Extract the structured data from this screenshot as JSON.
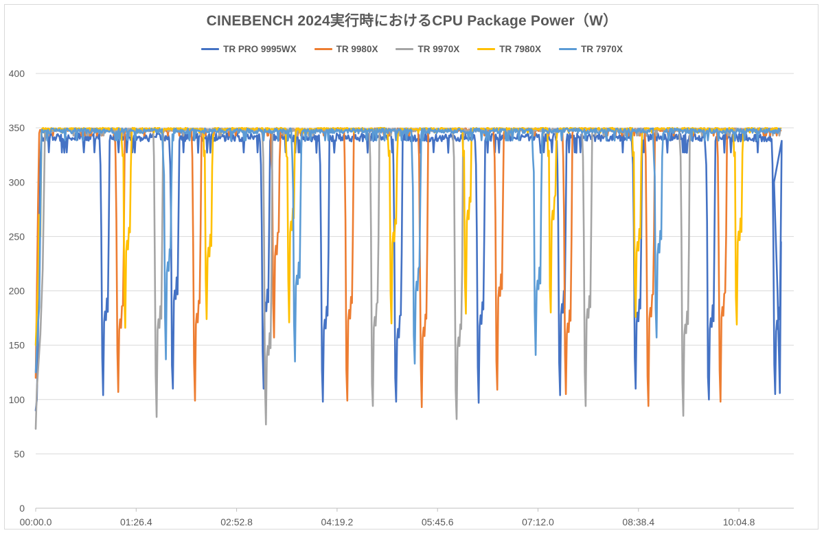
{
  "chart_data": {
    "type": "line",
    "title": "CINEBENCH 2024実行時におけるCPU Package Power（W）",
    "xlabel": "",
    "ylabel": "",
    "ylim": [
      0,
      400
    ],
    "y_ticks": [
      0,
      50,
      100,
      150,
      200,
      250,
      300,
      350,
      400
    ],
    "x_range_seconds": [
      0,
      652
    ],
    "x_ticks": [
      {
        "seconds": 0,
        "label": "00:00.0"
      },
      {
        "seconds": 86.4,
        "label": "01:26.4"
      },
      {
        "seconds": 172.8,
        "label": "02:52.8"
      },
      {
        "seconds": 259.2,
        "label": "04:19.2"
      },
      {
        "seconds": 345.6,
        "label": "05:45.6"
      },
      {
        "seconds": 432.0,
        "label": "07:12.0"
      },
      {
        "seconds": 518.4,
        "label": "08:38.4"
      },
      {
        "seconds": 604.8,
        "label": "10:04.8"
      }
    ],
    "grid": true,
    "legend_position": "top",
    "series": [
      {
        "name": "TR PRO 9995WX",
        "color": "#4472C4",
        "base": 341,
        "noise": 4,
        "end": 641,
        "start": [
          [
            0,
            90
          ],
          [
            1,
            100
          ],
          [
            2,
            160
          ],
          [
            3,
            240
          ],
          [
            4,
            320
          ],
          [
            5,
            343
          ]
        ],
        "dips": [
          [
            58,
            104
          ],
          [
            118,
            110
          ],
          [
            196,
            110
          ],
          [
            247,
            98
          ],
          [
            310,
            98
          ],
          [
            381,
            97
          ],
          [
            451,
            104
          ],
          [
            516,
            110
          ],
          [
            579,
            100
          ],
          [
            636,
            105
          ]
        ],
        "tail": [
          [
            635,
            300
          ],
          [
            638,
            200
          ],
          [
            640,
            106
          ],
          [
            641,
            245
          ]
        ]
      },
      {
        "name": "TR 9980X",
        "color": "#ED7D31",
        "base": 348,
        "noise": 1.5,
        "end": 641,
        "start": [
          [
            0,
            120
          ],
          [
            1,
            200
          ],
          [
            2,
            280
          ],
          [
            3,
            345
          ]
        ],
        "dips": [
          [
            71,
            107
          ],
          [
            137,
            99
          ],
          [
            205,
            157
          ],
          [
            268,
            99
          ],
          [
            332,
            93
          ],
          [
            397,
            109
          ],
          [
            456,
            105
          ],
          [
            527,
            94
          ],
          [
            589,
            98
          ]
        ]
      },
      {
        "name": "TR 9970X",
        "color": "#A5A5A5",
        "base": 348,
        "noise": 1.5,
        "end": 641,
        "start": [
          [
            0,
            73
          ],
          [
            1,
            110
          ],
          [
            4,
            160
          ],
          [
            6,
            220
          ],
          [
            8,
            348
          ]
        ],
        "dips": [
          [
            104,
            84
          ],
          [
            198,
            77
          ],
          [
            290,
            94
          ],
          [
            362,
            82
          ],
          [
            473,
            94
          ],
          [
            557,
            85
          ]
        ]
      },
      {
        "name": "TR 7980X",
        "color": "#FFC000",
        "base": 349,
        "noise": 1,
        "end": 641,
        "start": [
          [
            0,
            150
          ],
          [
            2,
            205
          ],
          [
            3,
            270
          ],
          [
            4,
            250
          ],
          [
            5,
            348
          ]
        ],
        "dips": [
          [
            77,
            166
          ],
          [
            147,
            174
          ],
          [
            218,
            171
          ],
          [
            306,
            170
          ],
          [
            370,
            179
          ],
          [
            443,
            180
          ],
          [
            516,
            176
          ],
          [
            603,
            169
          ]
        ]
      },
      {
        "name": "TR 7970X",
        "color": "#5B9BD5",
        "base": 347,
        "noise": 2.5,
        "end": 641,
        "start": [
          [
            0,
            125
          ],
          [
            2,
            170
          ],
          [
            3,
            185
          ],
          [
            5,
            348
          ]
        ],
        "dips": [
          [
            112,
            137
          ],
          [
            223,
            135
          ],
          [
            326,
            133
          ],
          [
            430,
            141
          ],
          [
            534,
            157
          ]
        ]
      }
    ]
  }
}
